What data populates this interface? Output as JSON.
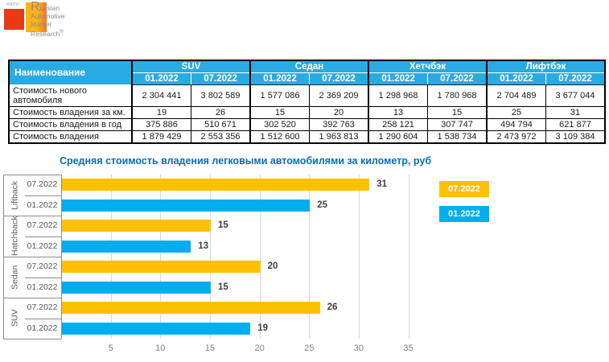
{
  "logo": {
    "napi_text": "НАПИ",
    "brand_lines": [
      "Russian",
      "Automotive",
      "Market",
      "Research"
    ],
    "registered_mark": "®",
    "colors": {
      "red_square": "#E93A17",
      "yellow_square": "#FDB515",
      "orange_edge": "#F1752C",
      "text_gray": "#8A8B8E"
    }
  },
  "table": {
    "corner_header": "Наименование",
    "header_bg": "#29ABE2",
    "groups": [
      {
        "label": "SUV",
        "periods": [
          "01.2022",
          "07.2022"
        ]
      },
      {
        "label": "Седан",
        "periods": [
          "01.2022",
          "07.2022"
        ]
      },
      {
        "label": "Хетчбэк",
        "periods": [
          "01.2022",
          "07.2022"
        ]
      },
      {
        "label": "Лифтбэк",
        "periods": [
          "01.2022",
          "07.2022"
        ]
      }
    ],
    "rows": [
      {
        "label": "Стоимость нового автомобиля",
        "values": [
          "2 304 441",
          "3 802 589",
          "1 577 086",
          "2 369 209",
          "1 298 968",
          "1 780 968",
          "2 704 489",
          "3 677 044"
        ]
      },
      {
        "label": "Стоимость владения за км.",
        "values": [
          "19",
          "26",
          "15",
          "20",
          "13",
          "15",
          "25",
          "31"
        ]
      },
      {
        "label": "Стоимость владения в год",
        "values": [
          "375 886",
          "510 671",
          "302 520",
          "392 763",
          "258 121",
          "307 747",
          "494 794",
          "621 877"
        ]
      },
      {
        "label": "Стоимость владения",
        "values": [
          "1 879 429",
          "2 553 356",
          "1 512 600",
          "1 963 813",
          "1 290 604",
          "1 538 734",
          "2 473 972",
          "3 109 384"
        ]
      }
    ]
  },
  "chart_data": {
    "type": "bar",
    "orientation": "horizontal",
    "title": "Средняя стоимость владения легковыми автомобилями за километр, руб",
    "groups_top_to_bottom": [
      "Liftback",
      "Hatchback",
      "Sedan",
      "SUV"
    ],
    "series": [
      {
        "name": "07.2022",
        "color": "#FFC000",
        "values": [
          31,
          15,
          20,
          26
        ]
      },
      {
        "name": "01.2022",
        "color": "#00AEEF",
        "values": [
          25,
          13,
          15,
          19
        ]
      }
    ],
    "x_ticks": [
      5,
      10,
      15,
      20,
      25,
      30,
      35
    ],
    "xlim": [
      0,
      36
    ],
    "gridlines": true,
    "value_labels_shown": true,
    "legend_position": "right",
    "title_color": "#0070C0"
  }
}
